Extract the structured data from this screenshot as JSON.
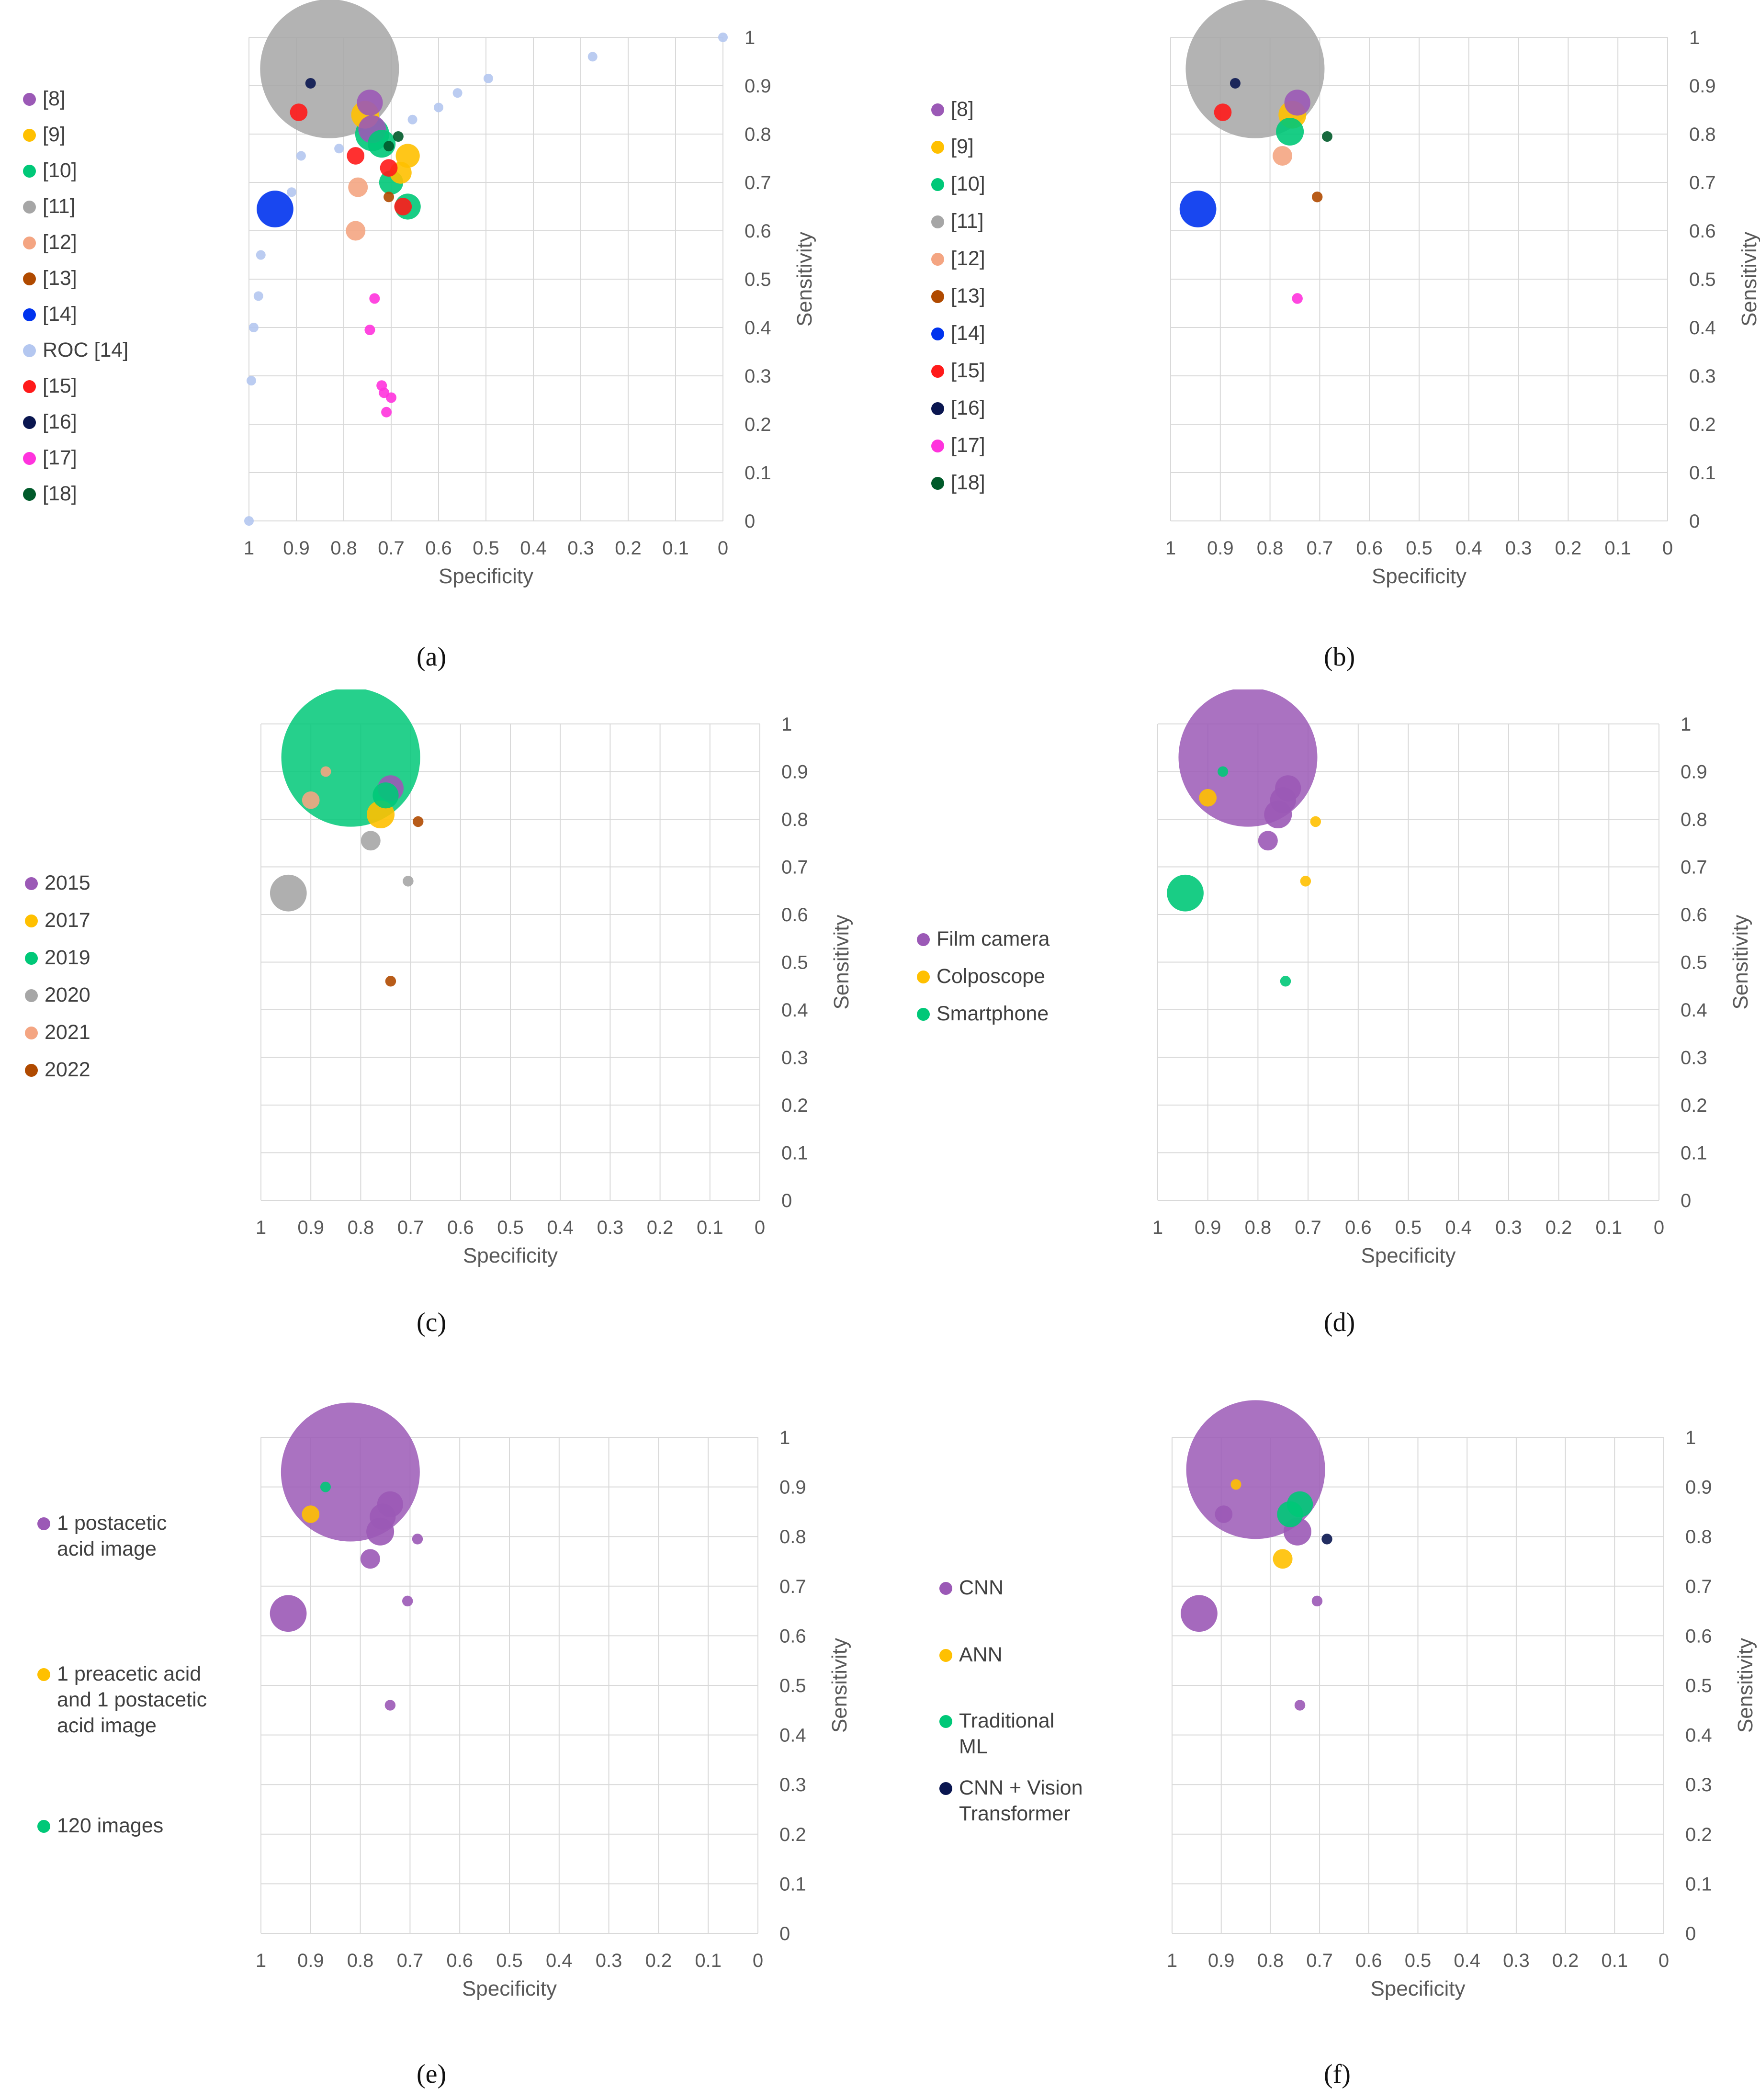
{
  "chart_data": [
    {
      "id": "a",
      "type": "scatter",
      "bubble": true,
      "panel_label": "(a)",
      "xlabel": "Specificity",
      "ylabel": "Sensitivity",
      "xlim": [
        1,
        0
      ],
      "ylim": [
        0,
        1
      ],
      "xticks": [
        "1",
        "0.9",
        "0.8",
        "0.7",
        "0.6",
        "0.5",
        "0.4",
        "0.3",
        "0.2",
        "0.1",
        "0"
      ],
      "yticks": [
        "0",
        "0.1",
        "0.2",
        "0.3",
        "0.4",
        "0.5",
        "0.6",
        "0.7",
        "0.8",
        "0.9",
        "1"
      ],
      "legend": [
        {
          "label": "[8]",
          "color": "#9b59b6"
        },
        {
          "label": "[9]",
          "color": "#ffc000"
        },
        {
          "label": "[10]",
          "color": "#00c878"
        },
        {
          "label": "[11]",
          "color": "#a6a6a6"
        },
        {
          "label": "[12]",
          "color": "#f4a582"
        },
        {
          "label": "[13]",
          "color": "#b04a00"
        },
        {
          "label": "[14]",
          "color": "#0033ee"
        },
        {
          "label": "ROC [14]",
          "color": "#b4c7f0"
        },
        {
          "label": "[15]",
          "color": "#ff1a1a"
        },
        {
          "label": "[16]",
          "color": "#0a1650"
        },
        {
          "label": "[17]",
          "color": "#ff33dd"
        },
        {
          "label": "[18]",
          "color": "#005a2a"
        }
      ],
      "points": [
        {
          "series": "ROC [14]",
          "x": 1.0,
          "y": 0.0,
          "size": 1
        },
        {
          "series": "ROC [14]",
          "x": 0.995,
          "y": 0.29,
          "size": 1
        },
        {
          "series": "ROC [14]",
          "x": 0.99,
          "y": 0.4,
          "size": 1
        },
        {
          "series": "ROC [14]",
          "x": 0.98,
          "y": 0.465,
          "size": 1
        },
        {
          "series": "ROC [14]",
          "x": 0.975,
          "y": 0.55,
          "size": 1
        },
        {
          "series": "ROC [14]",
          "x": 0.91,
          "y": 0.68,
          "size": 1
        },
        {
          "series": "ROC [14]",
          "x": 0.89,
          "y": 0.755,
          "size": 1
        },
        {
          "series": "ROC [14]",
          "x": 0.81,
          "y": 0.77,
          "size": 1
        },
        {
          "series": "ROC [14]",
          "x": 0.655,
          "y": 0.83,
          "size": 1
        },
        {
          "series": "ROC [14]",
          "x": 0.6,
          "y": 0.855,
          "size": 1
        },
        {
          "series": "ROC [14]",
          "x": 0.56,
          "y": 0.885,
          "size": 1
        },
        {
          "series": "ROC [14]",
          "x": 0.495,
          "y": 0.915,
          "size": 1
        },
        {
          "series": "ROC [14]",
          "x": 0.275,
          "y": 0.96,
          "size": 1
        },
        {
          "series": "ROC [14]",
          "x": 0.0,
          "y": 1.0,
          "size": 1
        },
        {
          "series": "[11]",
          "x": 0.83,
          "y": 0.935,
          "size": 100
        },
        {
          "series": "[8]",
          "x": 0.745,
          "y": 0.865,
          "size": 3.5
        },
        {
          "series": "[9]",
          "x": 0.755,
          "y": 0.84,
          "size": 4
        },
        {
          "series": "[8]",
          "x": 0.74,
          "y": 0.81,
          "size": 4
        },
        {
          "series": "[10]",
          "x": 0.74,
          "y": 0.8,
          "size": 6
        },
        {
          "series": "[10]",
          "x": 0.72,
          "y": 0.78,
          "size": 4
        },
        {
          "series": "[9]",
          "x": 0.665,
          "y": 0.755,
          "size": 3
        },
        {
          "series": "[10]",
          "x": 0.7,
          "y": 0.7,
          "size": 3
        },
        {
          "series": "[9]",
          "x": 0.68,
          "y": 0.72,
          "size": 2.5
        },
        {
          "series": "[12]",
          "x": 0.77,
          "y": 0.69,
          "size": 2
        },
        {
          "series": "[12]",
          "x": 0.775,
          "y": 0.6,
          "size": 2
        },
        {
          "series": "[14]",
          "x": 0.945,
          "y": 0.645,
          "size": 7
        },
        {
          "series": "[10]",
          "x": 0.665,
          "y": 0.65,
          "size": 3.5
        },
        {
          "series": "[15]",
          "x": 0.895,
          "y": 0.845,
          "size": 1.6
        },
        {
          "series": "[15]",
          "x": 0.775,
          "y": 0.755,
          "size": 1.6
        },
        {
          "series": "[15]",
          "x": 0.705,
          "y": 0.73,
          "size": 1.6
        },
        {
          "series": "[15]",
          "x": 0.675,
          "y": 0.65,
          "size": 1.6
        },
        {
          "series": "[13]",
          "x": 0.705,
          "y": 0.67,
          "size": 0.45
        },
        {
          "series": "[16]",
          "x": 0.87,
          "y": 0.905,
          "size": 0.25
        },
        {
          "series": "[18]",
          "x": 0.685,
          "y": 0.795,
          "size": 0.5
        },
        {
          "series": "[18]",
          "x": 0.705,
          "y": 0.775,
          "size": 0.4
        },
        {
          "series": "[17]",
          "x": 0.735,
          "y": 0.46,
          "size": 0.5
        },
        {
          "series": "[17]",
          "x": 0.745,
          "y": 0.395,
          "size": 0.5
        },
        {
          "series": "[17]",
          "x": 0.72,
          "y": 0.28,
          "size": 0.5
        },
        {
          "series": "[17]",
          "x": 0.715,
          "y": 0.265,
          "size": 0.5
        },
        {
          "series": "[17]",
          "x": 0.7,
          "y": 0.255,
          "size": 0.5
        },
        {
          "series": "[17]",
          "x": 0.71,
          "y": 0.225,
          "size": 0.5
        }
      ]
    },
    {
      "id": "b",
      "type": "scatter",
      "bubble": true,
      "panel_label": "(b)",
      "xlabel": "Specificity",
      "ylabel": "Sensitivity",
      "xlim": [
        1,
        0
      ],
      "ylim": [
        0,
        1
      ],
      "xticks": [
        "1",
        "0.9",
        "0.8",
        "0.7",
        "0.6",
        "0.5",
        "0.4",
        "0.3",
        "0.2",
        "0.1",
        "0"
      ],
      "yticks": [
        "0",
        "0.1",
        "0.2",
        "0.3",
        "0.4",
        "0.5",
        "0.6",
        "0.7",
        "0.8",
        "0.9",
        "1"
      ],
      "legend": [
        {
          "label": "[8]",
          "color": "#9b59b6"
        },
        {
          "label": "[9]",
          "color": "#ffc000"
        },
        {
          "label": "[10]",
          "color": "#00c878"
        },
        {
          "label": "[11]",
          "color": "#a6a6a6"
        },
        {
          "label": "[12]",
          "color": "#f4a582"
        },
        {
          "label": "[13]",
          "color": "#b04a00"
        },
        {
          "label": "[14]",
          "color": "#0033ee"
        },
        {
          "label": "[15]",
          "color": "#ff1a1a"
        },
        {
          "label": "[16]",
          "color": "#0a1650"
        },
        {
          "label": "[17]",
          "color": "#ff33dd"
        },
        {
          "label": "[18]",
          "color": "#005a2a"
        }
      ],
      "points": [
        {
          "series": "[11]",
          "x": 0.83,
          "y": 0.935,
          "size": 100
        },
        {
          "series": "[8]",
          "x": 0.745,
          "y": 0.865,
          "size": 3.5
        },
        {
          "series": "[9]",
          "x": 0.755,
          "y": 0.84,
          "size": 4
        },
        {
          "series": "[10]",
          "x": 0.76,
          "y": 0.805,
          "size": 4
        },
        {
          "series": "[12]",
          "x": 0.775,
          "y": 0.755,
          "size": 2
        },
        {
          "series": "[15]",
          "x": 0.895,
          "y": 0.845,
          "size": 1.6
        },
        {
          "series": "[16]",
          "x": 0.87,
          "y": 0.905,
          "size": 0.25
        },
        {
          "series": "[18]",
          "x": 0.685,
          "y": 0.795,
          "size": 0.5
        },
        {
          "series": "[14]",
          "x": 0.945,
          "y": 0.645,
          "size": 7
        },
        {
          "series": "[13]",
          "x": 0.705,
          "y": 0.67,
          "size": 0.6
        },
        {
          "series": "[17]",
          "x": 0.745,
          "y": 0.46,
          "size": 0.6
        }
      ]
    },
    {
      "id": "c",
      "type": "scatter",
      "bubble": true,
      "panel_label": "(c)",
      "xlabel": "Specificity",
      "ylabel": "Sensitivity",
      "xlim": [
        1,
        0
      ],
      "ylim": [
        0,
        1
      ],
      "xticks": [
        "1",
        "0.9",
        "0.8",
        "0.7",
        "0.6",
        "0.5",
        "0.4",
        "0.3",
        "0.2",
        "0.1",
        "0"
      ],
      "yticks": [
        "0",
        "0.1",
        "0.2",
        "0.3",
        "0.4",
        "0.5",
        "0.6",
        "0.7",
        "0.8",
        "0.9",
        "1"
      ],
      "legend": [
        {
          "label": "2015",
          "color": "#9b59b6"
        },
        {
          "label": "2017",
          "color": "#ffc000"
        },
        {
          "label": "2019",
          "color": "#00c878"
        },
        {
          "label": "2020",
          "color": "#a6a6a6"
        },
        {
          "label": "2021",
          "color": "#f4a582"
        },
        {
          "label": "2022",
          "color": "#b04a00"
        }
      ],
      "points": [
        {
          "series": "2019",
          "x": 0.82,
          "y": 0.93,
          "size": 100
        },
        {
          "series": "2021",
          "x": 0.87,
          "y": 0.9,
          "size": 0.25
        },
        {
          "series": "2015",
          "x": 0.74,
          "y": 0.865,
          "size": 3.5
        },
        {
          "series": "2019",
          "x": 0.75,
          "y": 0.85,
          "size": 3.5
        },
        {
          "series": "2021",
          "x": 0.9,
          "y": 0.84,
          "size": 1.6
        },
        {
          "series": "2017",
          "x": 0.76,
          "y": 0.81,
          "size": 4
        },
        {
          "series": "2022",
          "x": 0.685,
          "y": 0.795,
          "size": 0.6
        },
        {
          "series": "2020",
          "x": 0.78,
          "y": 0.755,
          "size": 2
        },
        {
          "series": "2020",
          "x": 0.705,
          "y": 0.67,
          "size": 0.6
        },
        {
          "series": "2020",
          "x": 0.945,
          "y": 0.645,
          "size": 7
        },
        {
          "series": "2022",
          "x": 0.74,
          "y": 0.46,
          "size": 0.6
        }
      ]
    },
    {
      "id": "d",
      "type": "scatter",
      "bubble": true,
      "panel_label": "(d)",
      "xlabel": "Specificity",
      "ylabel": "Sensitivity",
      "xlim": [
        1,
        0
      ],
      "ylim": [
        0,
        1
      ],
      "xticks": [
        "1",
        "0.9",
        "0.8",
        "0.7",
        "0.6",
        "0.5",
        "0.4",
        "0.3",
        "0.2",
        "0.1",
        "0"
      ],
      "yticks": [
        "0",
        "0.1",
        "0.2",
        "0.3",
        "0.4",
        "0.5",
        "0.6",
        "0.7",
        "0.8",
        "0.9",
        "1"
      ],
      "legend": [
        {
          "label": "Film camera",
          "color": "#9b59b6"
        },
        {
          "label": "Colposcope",
          "color": "#ffc000"
        },
        {
          "label": "Smartphone",
          "color": "#00c878"
        }
      ],
      "points": [
        {
          "series": "Film camera",
          "x": 0.82,
          "y": 0.93,
          "size": 100
        },
        {
          "series": "Smartphone",
          "x": 0.87,
          "y": 0.9,
          "size": 0.25
        },
        {
          "series": "Film camera",
          "x": 0.74,
          "y": 0.865,
          "size": 3.5
        },
        {
          "series": "Film camera",
          "x": 0.75,
          "y": 0.84,
          "size": 3.5
        },
        {
          "series": "Colposcope",
          "x": 0.9,
          "y": 0.845,
          "size": 1.6
        },
        {
          "series": "Film camera",
          "x": 0.76,
          "y": 0.81,
          "size": 4
        },
        {
          "series": "Colposcope",
          "x": 0.685,
          "y": 0.795,
          "size": 0.6
        },
        {
          "series": "Film camera",
          "x": 0.78,
          "y": 0.755,
          "size": 2
        },
        {
          "series": "Colposcope",
          "x": 0.705,
          "y": 0.67,
          "size": 0.6
        },
        {
          "series": "Smartphone",
          "x": 0.945,
          "y": 0.645,
          "size": 7
        },
        {
          "series": "Smartphone",
          "x": 0.745,
          "y": 0.46,
          "size": 0.6
        }
      ]
    },
    {
      "id": "e",
      "type": "scatter",
      "bubble": true,
      "panel_label": "(e)",
      "xlabel": "Specificity",
      "ylabel": "Sensitivity",
      "xlim": [
        1,
        0
      ],
      "ylim": [
        0,
        1
      ],
      "xticks": [
        "1",
        "0.9",
        "0.8",
        "0.7",
        "0.6",
        "0.5",
        "0.4",
        "0.3",
        "0.2",
        "0.1",
        "0"
      ],
      "yticks": [
        "0",
        "0.1",
        "0.2",
        "0.3",
        "0.4",
        "0.5",
        "0.6",
        "0.7",
        "0.8",
        "0.9",
        "1"
      ],
      "legend": [
        {
          "label": "1 postacetic acid image",
          "color": "#9b59b6"
        },
        {
          "label": "1 preacetic acid and 1 postacetic acid image",
          "color": "#ffc000"
        },
        {
          "label": "120 images",
          "color": "#00c878"
        }
      ],
      "points": [
        {
          "series": "1 postacetic acid image",
          "x": 0.82,
          "y": 0.93,
          "size": 100
        },
        {
          "series": "120 images",
          "x": 0.87,
          "y": 0.9,
          "size": 0.25
        },
        {
          "series": "1 postacetic acid image",
          "x": 0.74,
          "y": 0.865,
          "size": 3.5
        },
        {
          "series": "1 postacetic acid image",
          "x": 0.755,
          "y": 0.84,
          "size": 3.5
        },
        {
          "series": "1 preacetic acid and 1 postacetic acid image",
          "x": 0.9,
          "y": 0.845,
          "size": 1.6
        },
        {
          "series": "1 postacetic acid image",
          "x": 0.76,
          "y": 0.81,
          "size": 4
        },
        {
          "series": "1 postacetic acid image",
          "x": 0.685,
          "y": 0.795,
          "size": 0.6
        },
        {
          "series": "1 postacetic acid image",
          "x": 0.78,
          "y": 0.755,
          "size": 2
        },
        {
          "series": "1 postacetic acid image",
          "x": 0.705,
          "y": 0.67,
          "size": 0.6
        },
        {
          "series": "1 postacetic acid image",
          "x": 0.945,
          "y": 0.645,
          "size": 7
        },
        {
          "series": "1 postacetic acid image",
          "x": 0.74,
          "y": 0.46,
          "size": 0.6
        }
      ]
    },
    {
      "id": "f",
      "type": "scatter",
      "bubble": true,
      "panel_label": "(f)",
      "xlabel": "Specificity",
      "ylabel": "Sensitivity",
      "xlim": [
        1,
        0
      ],
      "ylim": [
        0,
        1
      ],
      "xticks": [
        "1",
        "0.9",
        "0.8",
        "0.7",
        "0.6",
        "0.5",
        "0.4",
        "0.3",
        "0.2",
        "0.1",
        "0"
      ],
      "yticks": [
        "0",
        "0.1",
        "0.2",
        "0.3",
        "0.4",
        "0.5",
        "0.6",
        "0.7",
        "0.8",
        "0.9",
        "1"
      ],
      "legend": [
        {
          "label": "CNN",
          "color": "#9b59b6"
        },
        {
          "label": "ANN",
          "color": "#ffc000"
        },
        {
          "label": "Traditional ML",
          "color": "#00c878"
        },
        {
          "label": "CNN + Vision Transformer",
          "color": "#0a1650"
        }
      ],
      "points": [
        {
          "series": "CNN",
          "x": 0.83,
          "y": 0.935,
          "size": 100
        },
        {
          "series": "ANN",
          "x": 0.87,
          "y": 0.905,
          "size": 0.25
        },
        {
          "series": "CNN",
          "x": 0.895,
          "y": 0.845,
          "size": 1.6
        },
        {
          "series": "CNN",
          "x": 0.745,
          "y": 0.81,
          "size": 4
        },
        {
          "series": "Traditional ML",
          "x": 0.74,
          "y": 0.865,
          "size": 3.5
        },
        {
          "series": "Traditional ML",
          "x": 0.76,
          "y": 0.845,
          "size": 3.5
        },
        {
          "series": "ANN",
          "x": 0.775,
          "y": 0.755,
          "size": 2
        },
        {
          "series": "CNN + Vision Transformer",
          "x": 0.685,
          "y": 0.795,
          "size": 0.6
        },
        {
          "series": "CNN",
          "x": 0.705,
          "y": 0.67,
          "size": 0.6
        },
        {
          "series": "CNN",
          "x": 0.945,
          "y": 0.645,
          "size": 7
        },
        {
          "series": "CNN",
          "x": 0.74,
          "y": 0.46,
          "size": 0.6
        }
      ]
    }
  ]
}
